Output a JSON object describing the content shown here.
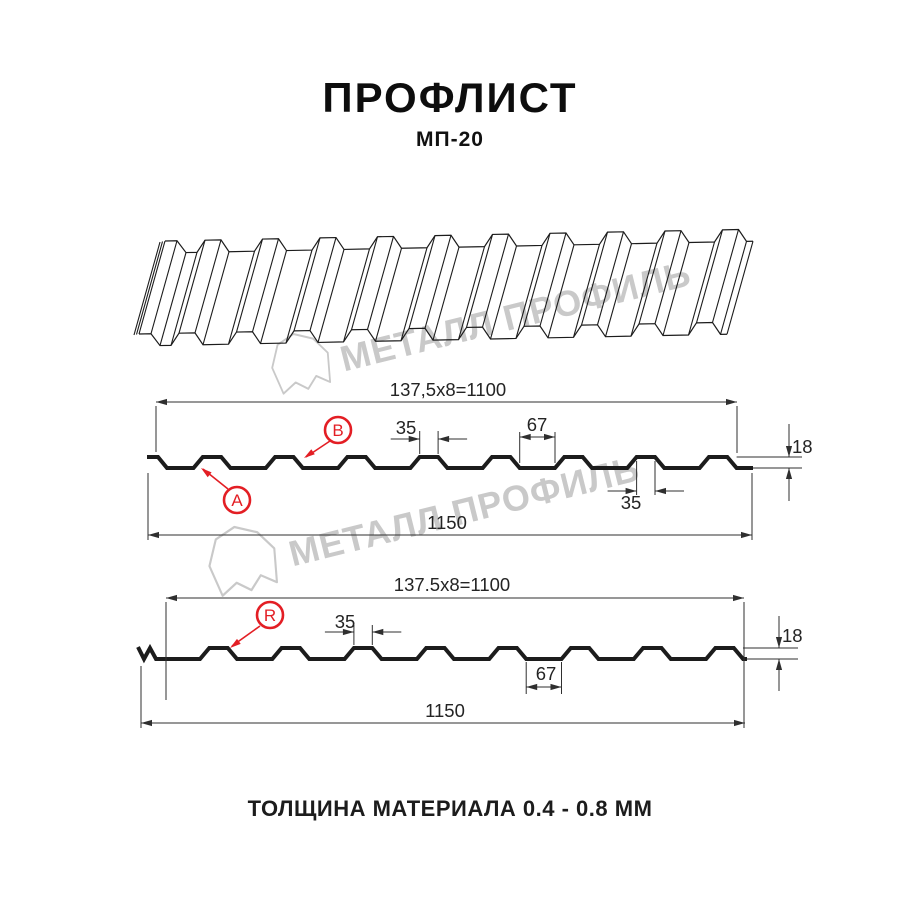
{
  "title": "ПРОФЛИСТ",
  "subtitle": "МП-20",
  "footer": "ТОЛЩИНА МАТЕРИАЛА 0.4 - 0.8 ММ",
  "watermark": {
    "text": "МЕТАЛЛ ПРОФИЛЬ"
  },
  "colors": {
    "red": "#e31e24",
    "line": "#1c1c1c",
    "dim": "#2f2f2f",
    "watermark": "#c9c9c9"
  },
  "profile_a": {
    "label_a": "A",
    "label_b": "B",
    "dim_pitch": "137,5x8=1100",
    "dim_rib_top": "35",
    "dim_flat": "67",
    "dim_height": "18",
    "dim_rib_bottom": "35",
    "dim_overall": "1150"
  },
  "profile_r": {
    "label_r": "R",
    "dim_pitch": "137.5x8=1100",
    "dim_rib_top": "35",
    "dim_flat": "67",
    "dim_height": "18",
    "dim_overall": "1150"
  }
}
